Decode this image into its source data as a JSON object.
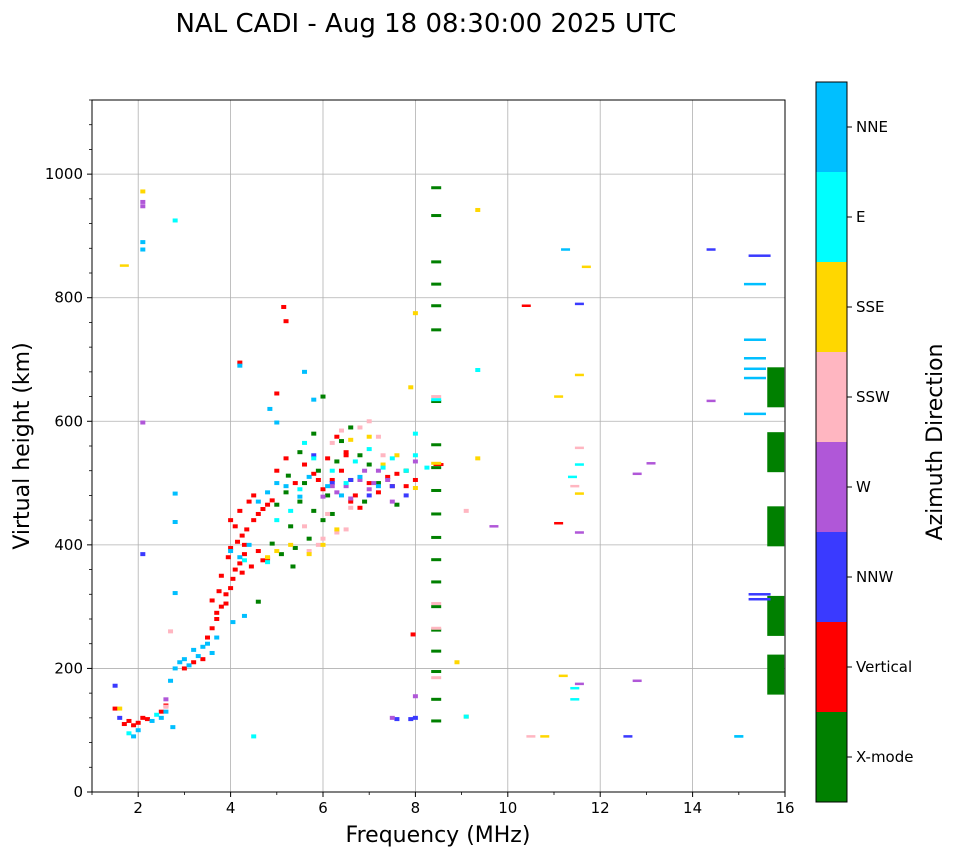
{
  "chart_data": {
    "type": "scatter",
    "title": "NAL CADI - Aug 18 08:30:00 2025 UTC",
    "xlabel": "Frequency (MHz)",
    "ylabel": "Virtual height (km)",
    "xlim": [
      1,
      16
    ],
    "ylim": [
      0,
      1120
    ],
    "xticks": [
      2,
      4,
      6,
      8,
      10,
      12,
      14,
      16
    ],
    "yticks": [
      0,
      200,
      400,
      600,
      800,
      1000
    ],
    "xticklabels": [
      "2",
      "4",
      "6",
      "8",
      "10",
      "12",
      "14",
      "16"
    ],
    "yticklabels": [
      "0",
      "200",
      "400",
      "600",
      "800",
      "1000"
    ],
    "grid": true,
    "colorbar": {
      "label": "Azimuth Direction",
      "categories": [
        {
          "name": "X-mode",
          "color": "#008000"
        },
        {
          "name": "Vertical",
          "color": "#ff0000"
        },
        {
          "name": "NNW",
          "color": "#3a3aff"
        },
        {
          "name": "W",
          "color": "#b057d8"
        },
        {
          "name": "SSW",
          "color": "#ffb6c1"
        },
        {
          "name": "SSE",
          "color": "#ffd700"
        },
        {
          "name": "E",
          "color": "#00ffff"
        },
        {
          "name": "NNE",
          "color": "#00bfff"
        }
      ]
    },
    "series": [
      {
        "name": "X-mode",
        "points": [
          [
            8.45,
            978
          ],
          [
            8.45,
            933
          ],
          [
            8.45,
            858
          ],
          [
            8.45,
            822
          ],
          [
            8.45,
            787
          ],
          [
            8.45,
            748
          ],
          [
            8.45,
            632
          ],
          [
            8.45,
            562
          ],
          [
            8.45,
            525
          ],
          [
            8.45,
            488
          ],
          [
            8.45,
            450
          ],
          [
            8.45,
            412
          ],
          [
            8.45,
            376
          ],
          [
            8.45,
            340
          ],
          [
            8.45,
            300
          ],
          [
            8.45,
            262
          ],
          [
            8.45,
            228
          ],
          [
            8.45,
            195
          ],
          [
            8.45,
            150
          ],
          [
            8.45,
            115
          ],
          [
            5.2,
            485
          ],
          [
            5.5,
            470
          ],
          [
            5.8,
            455
          ],
          [
            6.0,
            440
          ],
          [
            5.6,
            500
          ],
          [
            5.3,
            430
          ],
          [
            5.7,
            410
          ],
          [
            5.4,
            395
          ],
          [
            5.1,
            385
          ],
          [
            4.9,
            402
          ],
          [
            5.9,
            520
          ],
          [
            6.1,
            480
          ],
          [
            6.3,
            535
          ],
          [
            6.6,
            505
          ],
          [
            6.9,
            470
          ],
          [
            7.2,
            500
          ],
          [
            7.6,
            465
          ],
          [
            5.0,
            465
          ],
          [
            6.2,
            450
          ],
          [
            6.8,
            545
          ],
          [
            5.5,
            550
          ],
          [
            5.8,
            580
          ],
          [
            4.6,
            308
          ],
          [
            5.35,
            365
          ],
          [
            6.0,
            640
          ],
          [
            5.25,
            512
          ],
          [
            6.4,
            568
          ],
          [
            7.0,
            530
          ],
          [
            7.8,
            520
          ],
          [
            6.6,
            590
          ],
          [
            15.8,
            655
          ],
          [
            15.8,
            550
          ],
          [
            15.8,
            430
          ],
          [
            15.8,
            285
          ],
          [
            15.8,
            190
          ]
        ]
      },
      {
        "name": "Vertical",
        "points": [
          [
            1.5,
            135
          ],
          [
            1.7,
            110
          ],
          [
            1.8,
            115
          ],
          [
            1.9,
            108
          ],
          [
            2.0,
            112
          ],
          [
            2.1,
            120
          ],
          [
            2.2,
            118
          ],
          [
            2.5,
            130
          ],
          [
            2.6,
            140
          ],
          [
            3.0,
            200
          ],
          [
            3.2,
            210
          ],
          [
            3.4,
            215
          ],
          [
            3.5,
            250
          ],
          [
            3.6,
            265
          ],
          [
            3.7,
            280
          ],
          [
            3.8,
            300
          ],
          [
            3.9,
            320
          ],
          [
            4.0,
            330
          ],
          [
            4.05,
            345
          ],
          [
            4.1,
            360
          ],
          [
            4.2,
            370
          ],
          [
            3.95,
            380
          ],
          [
            4.3,
            385
          ],
          [
            4.0,
            395
          ],
          [
            4.15,
            405
          ],
          [
            4.25,
            415
          ],
          [
            4.35,
            425
          ],
          [
            4.0,
            440
          ],
          [
            4.5,
            440
          ],
          [
            4.6,
            450
          ],
          [
            4.7,
            458
          ],
          [
            4.8,
            465
          ],
          [
            4.4,
            470
          ],
          [
            4.9,
            472
          ],
          [
            4.2,
            455
          ],
          [
            4.5,
            480
          ],
          [
            3.8,
            350
          ],
          [
            3.9,
            305
          ],
          [
            3.7,
            290
          ],
          [
            4.1,
            430
          ],
          [
            4.3,
            400
          ],
          [
            4.6,
            390
          ],
          [
            4.7,
            375
          ],
          [
            4.45,
            365
          ],
          [
            4.8,
            378
          ],
          [
            4.25,
            355
          ],
          [
            3.6,
            310
          ],
          [
            3.75,
            325
          ],
          [
            5.0,
            520
          ],
          [
            5.2,
            540
          ],
          [
            5.4,
            500
          ],
          [
            5.6,
            530
          ],
          [
            5.8,
            515
          ],
          [
            6.0,
            490
          ],
          [
            6.2,
            505
          ],
          [
            6.4,
            520
          ],
          [
            6.5,
            545
          ],
          [
            6.6,
            470
          ],
          [
            6.7,
            480
          ],
          [
            6.8,
            460
          ],
          [
            7.0,
            500
          ],
          [
            7.2,
            485
          ],
          [
            7.4,
            510
          ],
          [
            7.5,
            495
          ],
          [
            7.6,
            515
          ],
          [
            7.8,
            495
          ],
          [
            8.0,
            505
          ],
          [
            6.3,
            575
          ],
          [
            6.5,
            550
          ],
          [
            6.1,
            540
          ],
          [
            5.9,
            505
          ],
          [
            5.15,
            785
          ],
          [
            5.2,
            762
          ],
          [
            4.2,
            695
          ],
          [
            5.0,
            645
          ],
          [
            7.95,
            255
          ],
          [
            8.5,
            530
          ],
          [
            10.4,
            787
          ],
          [
            11.1,
            435
          ]
        ]
      },
      {
        "name": "NNW",
        "points": [
          [
            1.5,
            172
          ],
          [
            1.6,
            120
          ],
          [
            2.1,
            385
          ],
          [
            5.8,
            545
          ],
          [
            6.2,
            500
          ],
          [
            6.6,
            505
          ],
          [
            7.0,
            480
          ],
          [
            7.5,
            495
          ],
          [
            7.8,
            480
          ],
          [
            11.55,
            790
          ],
          [
            14.4,
            878
          ],
          [
            15.45,
            868
          ],
          [
            15.45,
            320
          ],
          [
            15.45,
            312
          ],
          [
            12.6,
            90
          ],
          [
            7.9,
            118
          ],
          [
            7.6,
            118
          ],
          [
            8.0,
            120
          ]
        ]
      },
      {
        "name": "W",
        "points": [
          [
            2.1,
            955
          ],
          [
            2.1,
            948
          ],
          [
            2.1,
            598
          ],
          [
            2.6,
            150
          ],
          [
            6.5,
            495
          ],
          [
            6.8,
            505
          ],
          [
            7.0,
            490
          ],
          [
            7.2,
            520
          ],
          [
            6.3,
            485
          ],
          [
            6.0,
            478
          ],
          [
            6.6,
            475
          ],
          [
            6.9,
            520
          ],
          [
            7.4,
            505
          ],
          [
            7.1,
            500
          ],
          [
            7.5,
            470
          ],
          [
            8.0,
            155
          ],
          [
            7.5,
            120
          ],
          [
            9.7,
            430
          ],
          [
            11.55,
            420
          ],
          [
            12.8,
            515
          ],
          [
            13.1,
            532
          ],
          [
            12.8,
            180
          ],
          [
            14.4,
            633
          ],
          [
            11.55,
            175
          ],
          [
            8.0,
            535
          ],
          [
            6.2,
            495
          ]
        ]
      },
      {
        "name": "SSW",
        "points": [
          [
            2.6,
            138
          ],
          [
            2.7,
            260
          ],
          [
            5.7,
            390
          ],
          [
            5.9,
            400
          ],
          [
            6.0,
            410
          ],
          [
            6.3,
            420
          ],
          [
            6.5,
            425
          ],
          [
            6.6,
            460
          ],
          [
            6.2,
            565
          ],
          [
            6.4,
            585
          ],
          [
            6.8,
            590
          ],
          [
            7.0,
            600
          ],
          [
            7.2,
            575
          ],
          [
            5.6,
            430
          ],
          [
            6.1,
            450
          ],
          [
            7.3,
            545
          ],
          [
            9.1,
            455
          ],
          [
            11.55,
            557
          ],
          [
            11.45,
            495
          ],
          [
            10.5,
            90
          ],
          [
            8.45,
            640
          ],
          [
            8.45,
            265
          ],
          [
            8.45,
            305
          ],
          [
            8.45,
            185
          ]
        ]
      },
      {
        "name": "SSE",
        "points": [
          [
            1.6,
            135
          ],
          [
            1.7,
            852
          ],
          [
            2.1,
            972
          ],
          [
            4.8,
            380
          ],
          [
            5.0,
            390
          ],
          [
            5.3,
            400
          ],
          [
            5.7,
            385
          ],
          [
            6.0,
            400
          ],
          [
            6.3,
            425
          ],
          [
            6.6,
            570
          ],
          [
            7.0,
            575
          ],
          [
            7.3,
            530
          ],
          [
            7.6,
            545
          ],
          [
            8.0,
            492
          ],
          [
            8.0,
            775
          ],
          [
            7.9,
            655
          ],
          [
            8.9,
            210
          ],
          [
            9.35,
            942
          ],
          [
            9.35,
            540
          ],
          [
            11.1,
            640
          ],
          [
            11.2,
            188
          ],
          [
            11.55,
            483
          ],
          [
            11.55,
            675
          ],
          [
            11.7,
            850
          ],
          [
            10.8,
            90
          ],
          [
            8.45,
            532
          ],
          [
            9.1,
            122
          ]
        ]
      },
      {
        "name": "E",
        "points": [
          [
            1.8,
            95
          ],
          [
            2.4,
            125
          ],
          [
            2.8,
            925
          ],
          [
            4.5,
            90
          ],
          [
            4.8,
            372
          ],
          [
            5.0,
            440
          ],
          [
            5.3,
            455
          ],
          [
            5.6,
            565
          ],
          [
            5.8,
            540
          ],
          [
            6.2,
            520
          ],
          [
            6.5,
            500
          ],
          [
            6.7,
            535
          ],
          [
            7.0,
            555
          ],
          [
            7.3,
            525
          ],
          [
            7.5,
            540
          ],
          [
            7.8,
            520
          ],
          [
            8.0,
            580
          ],
          [
            8.0,
            545
          ],
          [
            5.5,
            490
          ],
          [
            4.3,
            375
          ],
          [
            11.4,
            510
          ],
          [
            11.45,
            168
          ],
          [
            11.45,
            150
          ],
          [
            11.55,
            530
          ],
          [
            15.0,
            90
          ],
          [
            9.35,
            683
          ],
          [
            8.45,
            635
          ],
          [
            9.1,
            122
          ],
          [
            8.25,
            525
          ]
        ]
      },
      {
        "name": "NNE",
        "points": [
          [
            1.9,
            90
          ],
          [
            2.0,
            100
          ],
          [
            2.1,
            890
          ],
          [
            2.1,
            878
          ],
          [
            2.3,
            115
          ],
          [
            2.5,
            120
          ],
          [
            2.6,
            130
          ],
          [
            2.7,
            180
          ],
          [
            2.8,
            200
          ],
          [
            2.9,
            210
          ],
          [
            3.0,
            215
          ],
          [
            3.1,
            205
          ],
          [
            3.2,
            230
          ],
          [
            3.3,
            220
          ],
          [
            3.4,
            235
          ],
          [
            3.5,
            240
          ],
          [
            3.6,
            225
          ],
          [
            3.7,
            250
          ],
          [
            2.75,
            105
          ],
          [
            2.8,
            322
          ],
          [
            2.8,
            483
          ],
          [
            2.8,
            437
          ],
          [
            4.0,
            390
          ],
          [
            4.2,
            380
          ],
          [
            4.4,
            400
          ],
          [
            4.6,
            470
          ],
          [
            4.8,
            485
          ],
          [
            5.0,
            500
          ],
          [
            5.2,
            495
          ],
          [
            5.5,
            478
          ],
          [
            5.7,
            510
          ],
          [
            6.1,
            495
          ],
          [
            6.4,
            480
          ],
          [
            6.8,
            510
          ],
          [
            7.2,
            495
          ],
          [
            4.2,
            690
          ],
          [
            5.0,
            598
          ],
          [
            4.85,
            620
          ],
          [
            5.6,
            680
          ],
          [
            5.8,
            635
          ],
          [
            4.3,
            285
          ],
          [
            4.05,
            275
          ],
          [
            11.25,
            878
          ],
          [
            15.35,
            822
          ],
          [
            15.35,
            732
          ],
          [
            15.35,
            702
          ],
          [
            15.35,
            685
          ],
          [
            15.35,
            670
          ],
          [
            15.35,
            612
          ],
          [
            15.0,
            90
          ]
        ]
      }
    ]
  }
}
